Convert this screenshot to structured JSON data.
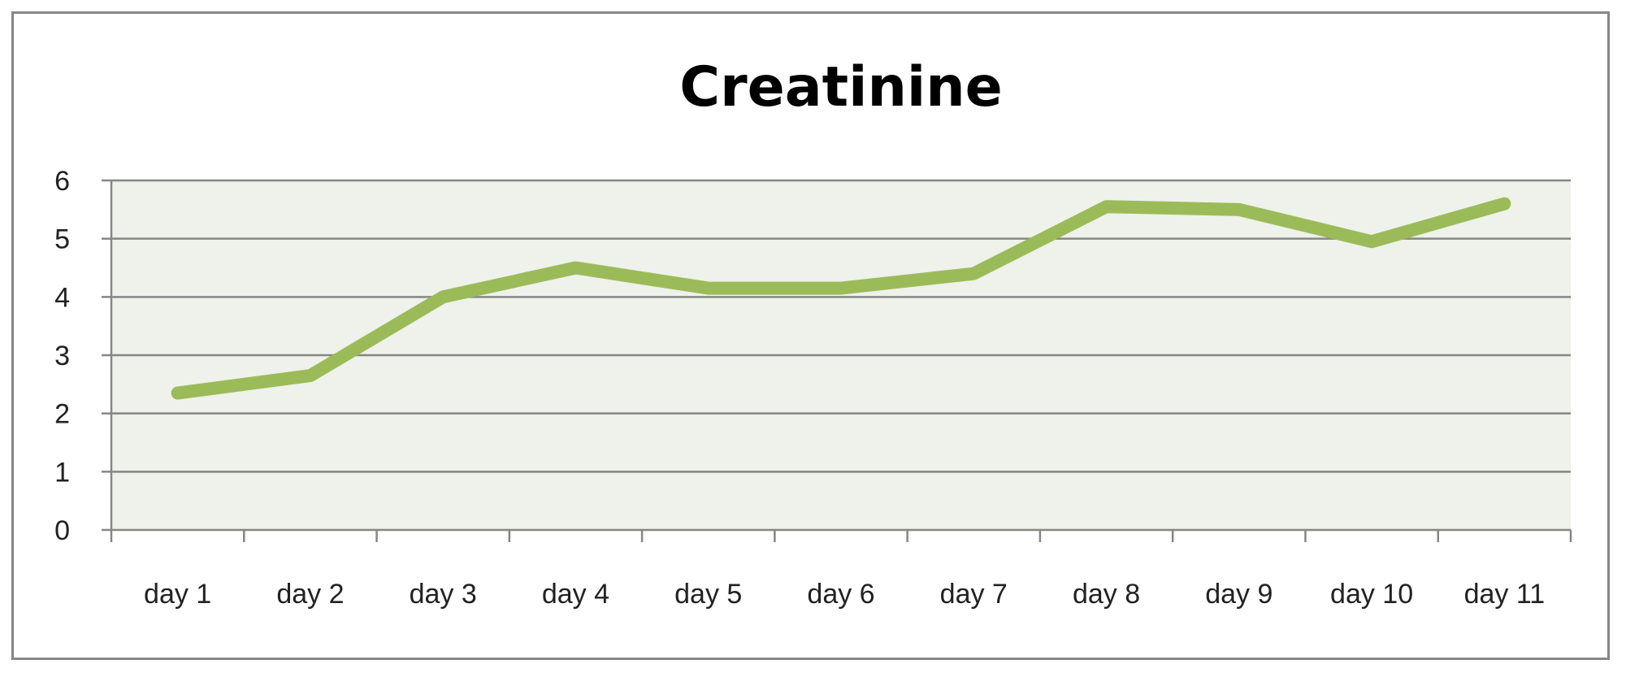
{
  "chart_data": {
    "type": "line",
    "title": "Creatinine",
    "xlabel": "",
    "ylabel": "",
    "categories": [
      "day 1",
      "day 2",
      "day 3",
      "day 4",
      "day 5",
      "day 6",
      "day 7",
      "day 8",
      "day 9",
      "day 10",
      "day 11"
    ],
    "series": [
      {
        "values": [
          2.35,
          2.65,
          4.0,
          4.5,
          4.15,
          4.15,
          4.4,
          5.55,
          5.5,
          4.95,
          5.6
        ]
      }
    ],
    "ylim": [
      0,
      6
    ],
    "yticks": [
      "0",
      "1",
      "2",
      "3",
      "4",
      "5",
      "6"
    ],
    "grid": true,
    "legend": "none",
    "colors": {
      "line": "#9bbb59",
      "plot_background": "#eef2ea",
      "gridline": "#868686",
      "frame": "#878787"
    }
  }
}
